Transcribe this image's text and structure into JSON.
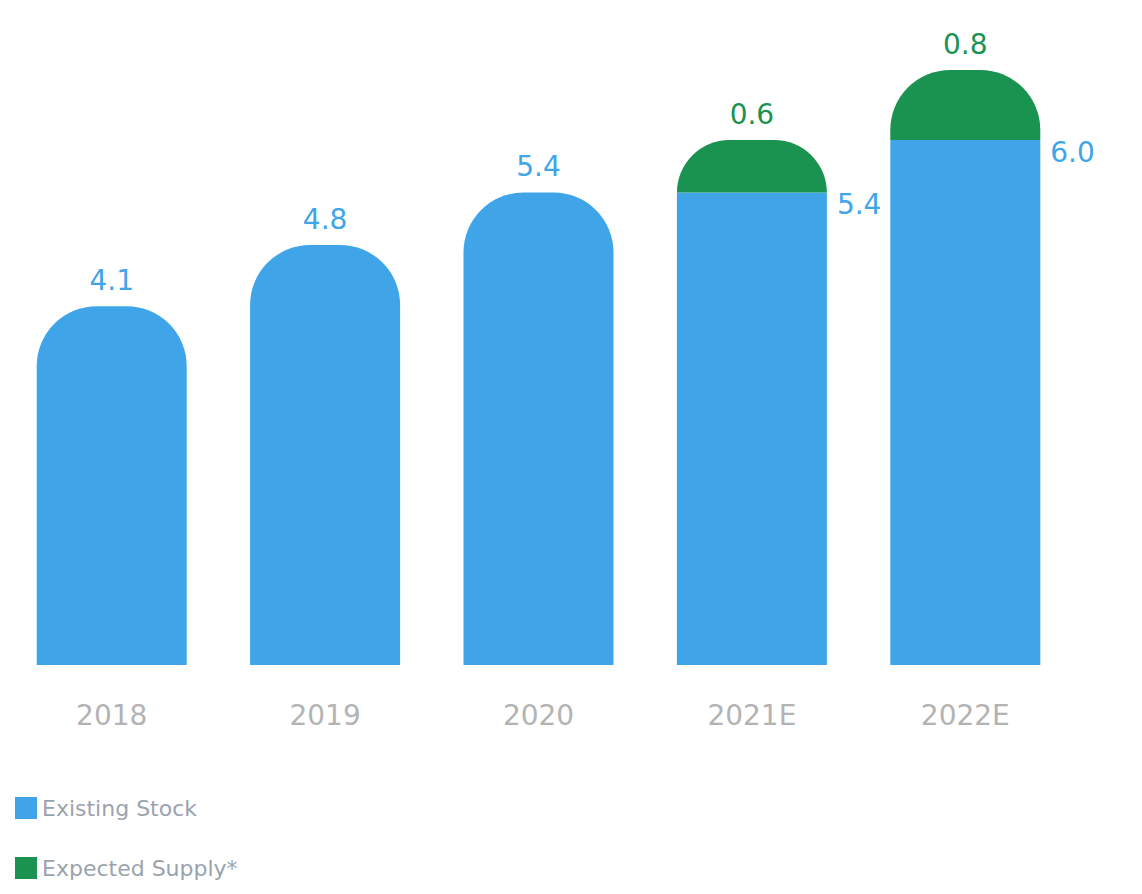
{
  "chart_data": {
    "type": "bar",
    "stacked": true,
    "data_labels": true,
    "tick_labels": "x",
    "legend": "bottom-left",
    "categories": [
      "2018",
      "2019",
      "2020",
      "2021E",
      "2022E"
    ],
    "series": [
      {
        "name": "Existing Stock",
        "color": "#3fa5e8",
        "values": [
          4.1,
          4.8,
          5.4,
          5.4,
          6.0
        ],
        "value_labels": [
          "4.1",
          "4.8",
          "5.4",
          "5.4",
          "6.0"
        ]
      },
      {
        "name": "Expected Supply*",
        "color": "#1a9350",
        "values": [
          null,
          null,
          null,
          0.6,
          0.8
        ]
      }
    ]
  }
}
